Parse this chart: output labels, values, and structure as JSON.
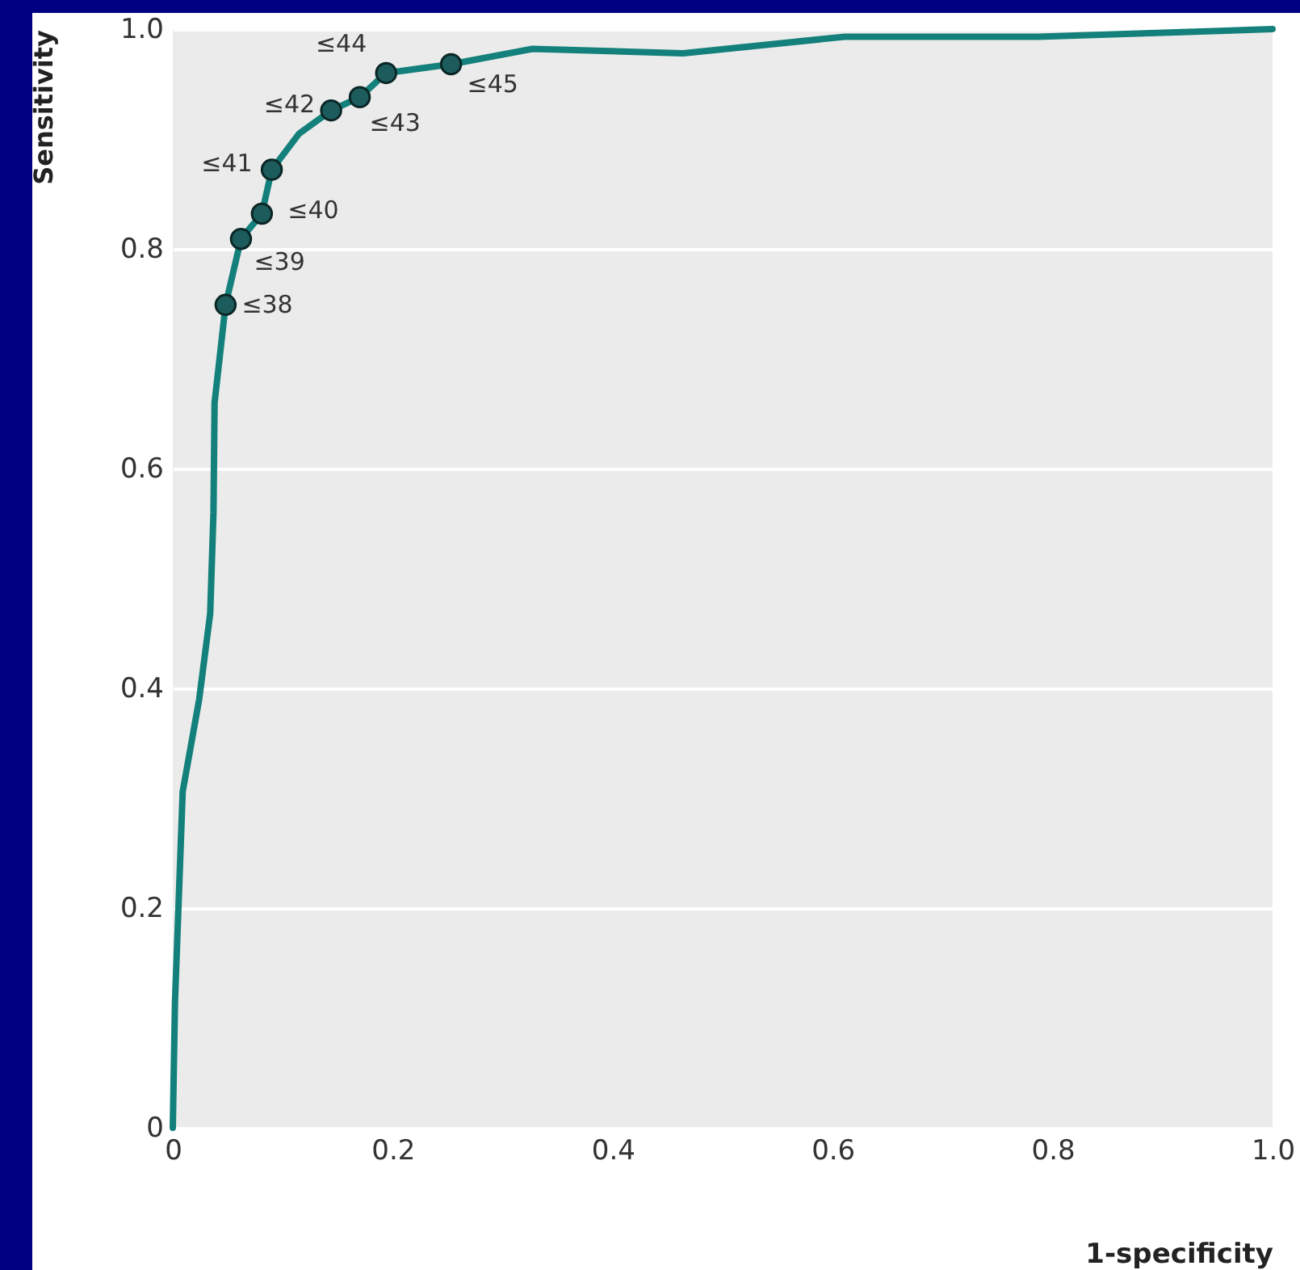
{
  "chart_data": {
    "type": "line",
    "xlabel": "1-specificity",
    "ylabel": "Sensitivity",
    "xlim": [
      0,
      1
    ],
    "ylim": [
      0,
      1
    ],
    "xticks": [
      0,
      0.2,
      0.4,
      0.6,
      0.8,
      {
        "value": 1,
        "label": "1.0"
      }
    ],
    "yticks": [
      0,
      0.2,
      0.4,
      0.6,
      0.8,
      {
        "value": 1,
        "label": "1.0"
      }
    ],
    "grid": "y",
    "marker": "circle",
    "line_style": "solid",
    "series": [
      {
        "color": "#13807b",
        "marker": "none",
        "x": [
          0,
          0.002,
          0.009,
          0.024,
          0.034,
          0.037,
          0.038,
          0.048,
          0.062,
          0.081,
          0.09,
          0.115,
          0.144,
          0.17,
          0.194,
          0.253,
          0.327,
          0.464,
          0.611,
          0.787,
          1.0
        ],
        "values": [
          0,
          0.115,
          0.306,
          0.39,
          0.468,
          0.56,
          0.66,
          0.749,
          0.809,
          0.832,
          0.872,
          0.905,
          0.926,
          0.938,
          0.96,
          0.968,
          0.982,
          0.978,
          0.993,
          0.993,
          1.0
        ]
      },
      {
        "type": "scatter",
        "color": "#1d5c5c",
        "x": [
          0.048,
          0.062,
          0.081,
          0.09,
          0.144,
          0.17,
          0.194,
          0.253
        ],
        "values": [
          0.749,
          0.809,
          0.832,
          0.872,
          0.926,
          0.938,
          0.96,
          0.968
        ]
      }
    ],
    "annotations": [
      {
        "text": "≤38",
        "x": 0.048,
        "y": 0.749
      },
      {
        "text": "≤39",
        "x": 0.062,
        "y": 0.809
      },
      {
        "text": "≤40",
        "x": 0.081,
        "y": 0.832
      },
      {
        "text": "≤41",
        "x": 0.09,
        "y": 0.872
      },
      {
        "text": "≤42",
        "x": 0.144,
        "y": 0.926
      },
      {
        "text": "≤43",
        "x": 0.17,
        "y": 0.938
      },
      {
        "text": "≤44",
        "x": 0.194,
        "y": 0.96
      },
      {
        "text": "≤45",
        "x": 0.253,
        "y": 0.968
      }
    ]
  }
}
